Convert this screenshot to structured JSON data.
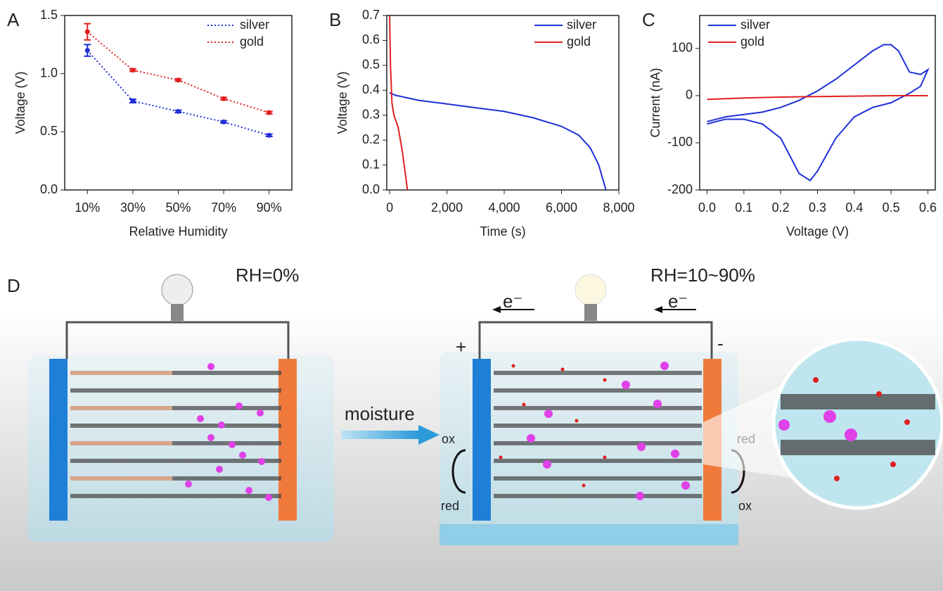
{
  "chart_data": [
    {
      "type": "line",
      "panel": "A",
      "x_label": "Relative Humidity",
      "y_label": "Voltage (V)",
      "categories": [
        "10%",
        "30%",
        "50%",
        "70%",
        "90%"
      ],
      "series": [
        {
          "name": "silver",
          "color": "#1f2fd8",
          "values": [
            1.2,
            0.765,
            0.675,
            0.585,
            0.47
          ],
          "errors": [
            0.05,
            0.015,
            0.01,
            0.01,
            0.01
          ]
        },
        {
          "name": "gold",
          "color": "#e02020",
          "values": [
            1.36,
            1.03,
            0.945,
            0.785,
            0.665
          ],
          "errors": [
            0.07,
            0.01,
            0.01,
            0.01,
            0.01
          ]
        }
      ],
      "linestyle": "dotted",
      "markers": true,
      "ylim": [
        0,
        1.5
      ],
      "yticks": [
        {
          "value": 0,
          "label": "0.0"
        },
        0.5,
        {
          "value": 1,
          "label": "1.0"
        },
        1.5
      ],
      "legend": "upper right"
    },
    {
      "type": "line",
      "panel": "B",
      "x_label": "Time (s)",
      "y_label": "Voltage (V)",
      "series": [
        {
          "name": "silver",
          "color": "#1f2fd8",
          "x": [
            0,
            200,
            1000,
            2000,
            3000,
            4000,
            5000,
            6000,
            6600,
            7000,
            7300,
            7500,
            7550
          ],
          "values": [
            0.39,
            0.38,
            0.36,
            0.345,
            0.33,
            0.315,
            0.29,
            0.255,
            0.22,
            0.17,
            0.1,
            0.02,
            0
          ]
        },
        {
          "name": "gold",
          "color": "#e02020",
          "x": [
            0,
            30,
            80,
            150,
            300,
            450,
            600,
            620
          ],
          "values": [
            0.7,
            0.5,
            0.35,
            0.3,
            0.25,
            0.15,
            0.02,
            0
          ]
        }
      ],
      "xlim": [
        -100,
        8000
      ],
      "xticks": [
        0,
        {
          "value": 2000,
          "label": "2,000"
        },
        {
          "value": 4000,
          "label": "4,000"
        },
        {
          "value": 6000,
          "label": "6,000"
        },
        {
          "value": 8000,
          "label": "8,000"
        }
      ],
      "ylim": [
        0,
        0.7
      ],
      "yticks": [
        {
          "value": 0,
          "label": "0.0"
        },
        0.1,
        0.2,
        0.3,
        0.4,
        0.5,
        0.6,
        0.7
      ],
      "legend": "upper right"
    },
    {
      "type": "line",
      "panel": "C",
      "x_label": "Voltage (V)",
      "y_label": "Current (nA)",
      "series": [
        {
          "name": "silver",
          "color": "#1f2fd8",
          "x": [
            0,
            0.05,
            0.1,
            0.15,
            0.2,
            0.25,
            0.3,
            0.35,
            0.4,
            0.45,
            0.48,
            0.5,
            0.52,
            0.55,
            0.58,
            0.6,
            0.58,
            0.55,
            0.5,
            0.45,
            0.4,
            0.35,
            0.3,
            0.28,
            0.25,
            0.22,
            0.2,
            0.15,
            0.1,
            0.05,
            0
          ],
          "values": [
            -55,
            -45,
            -40,
            -35,
            -25,
            -10,
            10,
            35,
            65,
            95,
            108,
            108,
            95,
            50,
            45,
            55,
            20,
            5,
            -15,
            -25,
            -45,
            -90,
            -160,
            -180,
            -165,
            -120,
            -90,
            -60,
            -50,
            -50,
            -60
          ]
        },
        {
          "name": "gold",
          "color": "#e02020",
          "x": [
            0,
            0.1,
            0.2,
            0.3,
            0.4,
            0.5,
            0.6
          ],
          "values": [
            -8,
            -5,
            -3,
            -2,
            -1,
            0,
            0
          ]
        }
      ],
      "xlim": [
        -0.02,
        0.62
      ],
      "xticks": [
        {
          "value": 0,
          "label": "0.0"
        },
        0.1,
        0.2,
        0.3,
        0.4,
        0.5,
        0.6
      ],
      "ylim": [
        -200,
        170
      ],
      "yticks": [
        -200,
        -100,
        0,
        100
      ],
      "legend": "upper left"
    }
  ],
  "panel_d": {
    "label": "D",
    "left_condition": "RH=0%",
    "right_condition": "RH=10~90%",
    "arrow_label": "moisture",
    "electron_left": "e⁻",
    "electron_right": "e⁻",
    "positive": "+",
    "negative": "-",
    "left_top": "ox",
    "left_bottom": "red",
    "right_top": "red",
    "right_bottom": "ox"
  }
}
